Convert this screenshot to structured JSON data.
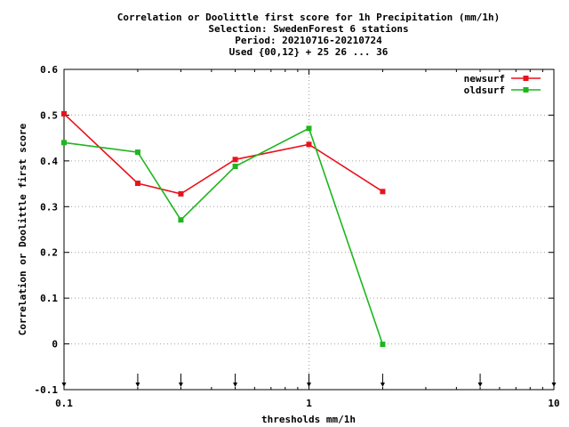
{
  "chart_data": {
    "type": "line",
    "title_lines": [
      "Correlation or Doolittle first score  for 1h Precipitation (mm/1h)",
      "Selection: SwedenForest      6 stations",
      "Period: 20210716-20210724",
      "Used {00,12} + 25 26 ... 36"
    ],
    "xlabel": "thresholds mm/1h",
    "ylabel": "Correlation or Doolittle first score",
    "x_scale": "log",
    "xlim": [
      0.1,
      10
    ],
    "ylim": [
      -0.1,
      0.6
    ],
    "x_ticks": [
      {
        "value": 0.1,
        "label": "0.1"
      },
      {
        "value": 1,
        "label": "1"
      },
      {
        "value": 10,
        "label": "10"
      }
    ],
    "y_ticks": [
      {
        "value": -0.1,
        "label": "-0.1"
      },
      {
        "value": 0,
        "label": "0"
      },
      {
        "value": 0.1,
        "label": "0.1"
      },
      {
        "value": 0.2,
        "label": "0.2"
      },
      {
        "value": 0.3,
        "label": "0.3"
      },
      {
        "value": 0.4,
        "label": "0.4"
      },
      {
        "value": 0.5,
        "label": "0.5"
      },
      {
        "value": 0.6,
        "label": "0.6"
      }
    ],
    "grid": true,
    "legend_position": "top-right",
    "threshold_markers": [
      0.1,
      0.2,
      0.3,
      0.5,
      1,
      2,
      5,
      10
    ],
    "series": [
      {
        "name": "newsurf",
        "color": "#e8121b",
        "x": [
          0.1,
          0.2,
          0.3,
          0.5,
          1,
          2
        ],
        "y": [
          0.503,
          0.351,
          0.328,
          0.403,
          0.436,
          0.333
        ]
      },
      {
        "name": "oldsurf",
        "color": "#1eb61e",
        "x": [
          0.1,
          0.2,
          0.3,
          0.5,
          1,
          2
        ],
        "y": [
          0.44,
          0.419,
          0.271,
          0.388,
          0.471,
          -0.001
        ]
      }
    ]
  }
}
